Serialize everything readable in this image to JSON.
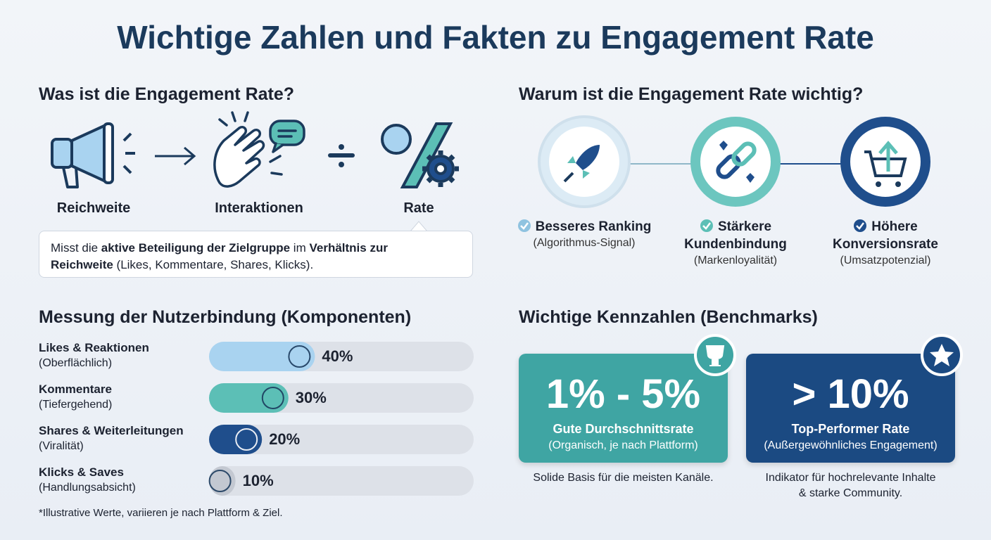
{
  "title": "Wichtige Zahlen und Fakten zu Engagement Rate",
  "definition": {
    "heading": "Was ist die Engagement Rate?",
    "steps": [
      "Reichweite",
      "Interaktionen",
      "Rate"
    ],
    "description": [
      {
        "text": "Misst die ",
        "bold": false
      },
      {
        "text": "aktive Beteiligung der Zielgruppe",
        "bold": true
      },
      {
        "text": " im ",
        "bold": false
      },
      {
        "text": "Verhältnis zur Reichweite",
        "bold": true
      },
      {
        "text": " (Likes, Kommentare, Shares, Klicks).",
        "bold": false
      }
    ]
  },
  "importance": {
    "heading": "Warum ist die Engagement Rate wichtig?",
    "items": [
      {
        "title": "Besseres Ranking",
        "note": "(Algorithmus-Signal)"
      },
      {
        "title": "Stärkere Kundenbindung",
        "note": "(Markenloyalität)"
      },
      {
        "title": "Höhere Konversionsrate",
        "note": "(Umsatzpotenzial)"
      }
    ]
  },
  "components": {
    "heading": "Messung der Nutzerbindung (Komponenten)",
    "items": [
      {
        "label": "Likes & Reaktionen",
        "note": "(Oberflächlich)",
        "value": 40,
        "value_label": "40%",
        "color": "#a9d3f0"
      },
      {
        "label": "Kommentare",
        "note": "(Tiefergehend)",
        "value": 30,
        "value_label": "30%",
        "color": "#5cbfb6"
      },
      {
        "label": "Shares & Weiterleitungen",
        "note": "(Viralität)",
        "value": 20,
        "value_label": "20%",
        "color": "#1f4e8c"
      },
      {
        "label": "Klicks & Saves",
        "note": "(Handlungsabsicht)",
        "value": 10,
        "value_label": "10%",
        "color": "#c3c8d1"
      }
    ],
    "footnote": "*Illustrative Werte, variieren je nach Plattform & Ziel."
  },
  "benchmarks": {
    "heading": "Wichtige Kennzahlen (Benchmarks)",
    "cards": [
      {
        "figure": "1% - 5%",
        "title": "Gute Durchschnittsrate",
        "note": "(Organisch, je nach Plattform)",
        "caption": "Solide Basis für die meisten Kanäle.",
        "color": "#3fa5a3"
      },
      {
        "figure": "> 10%",
        "title": "Top-Performer Rate",
        "note": "(Außergewöhnliches Engagement)",
        "caption": "Indikator für hochrelevante Inhalte & starke Community.",
        "color": "#1b4a82"
      }
    ]
  }
}
